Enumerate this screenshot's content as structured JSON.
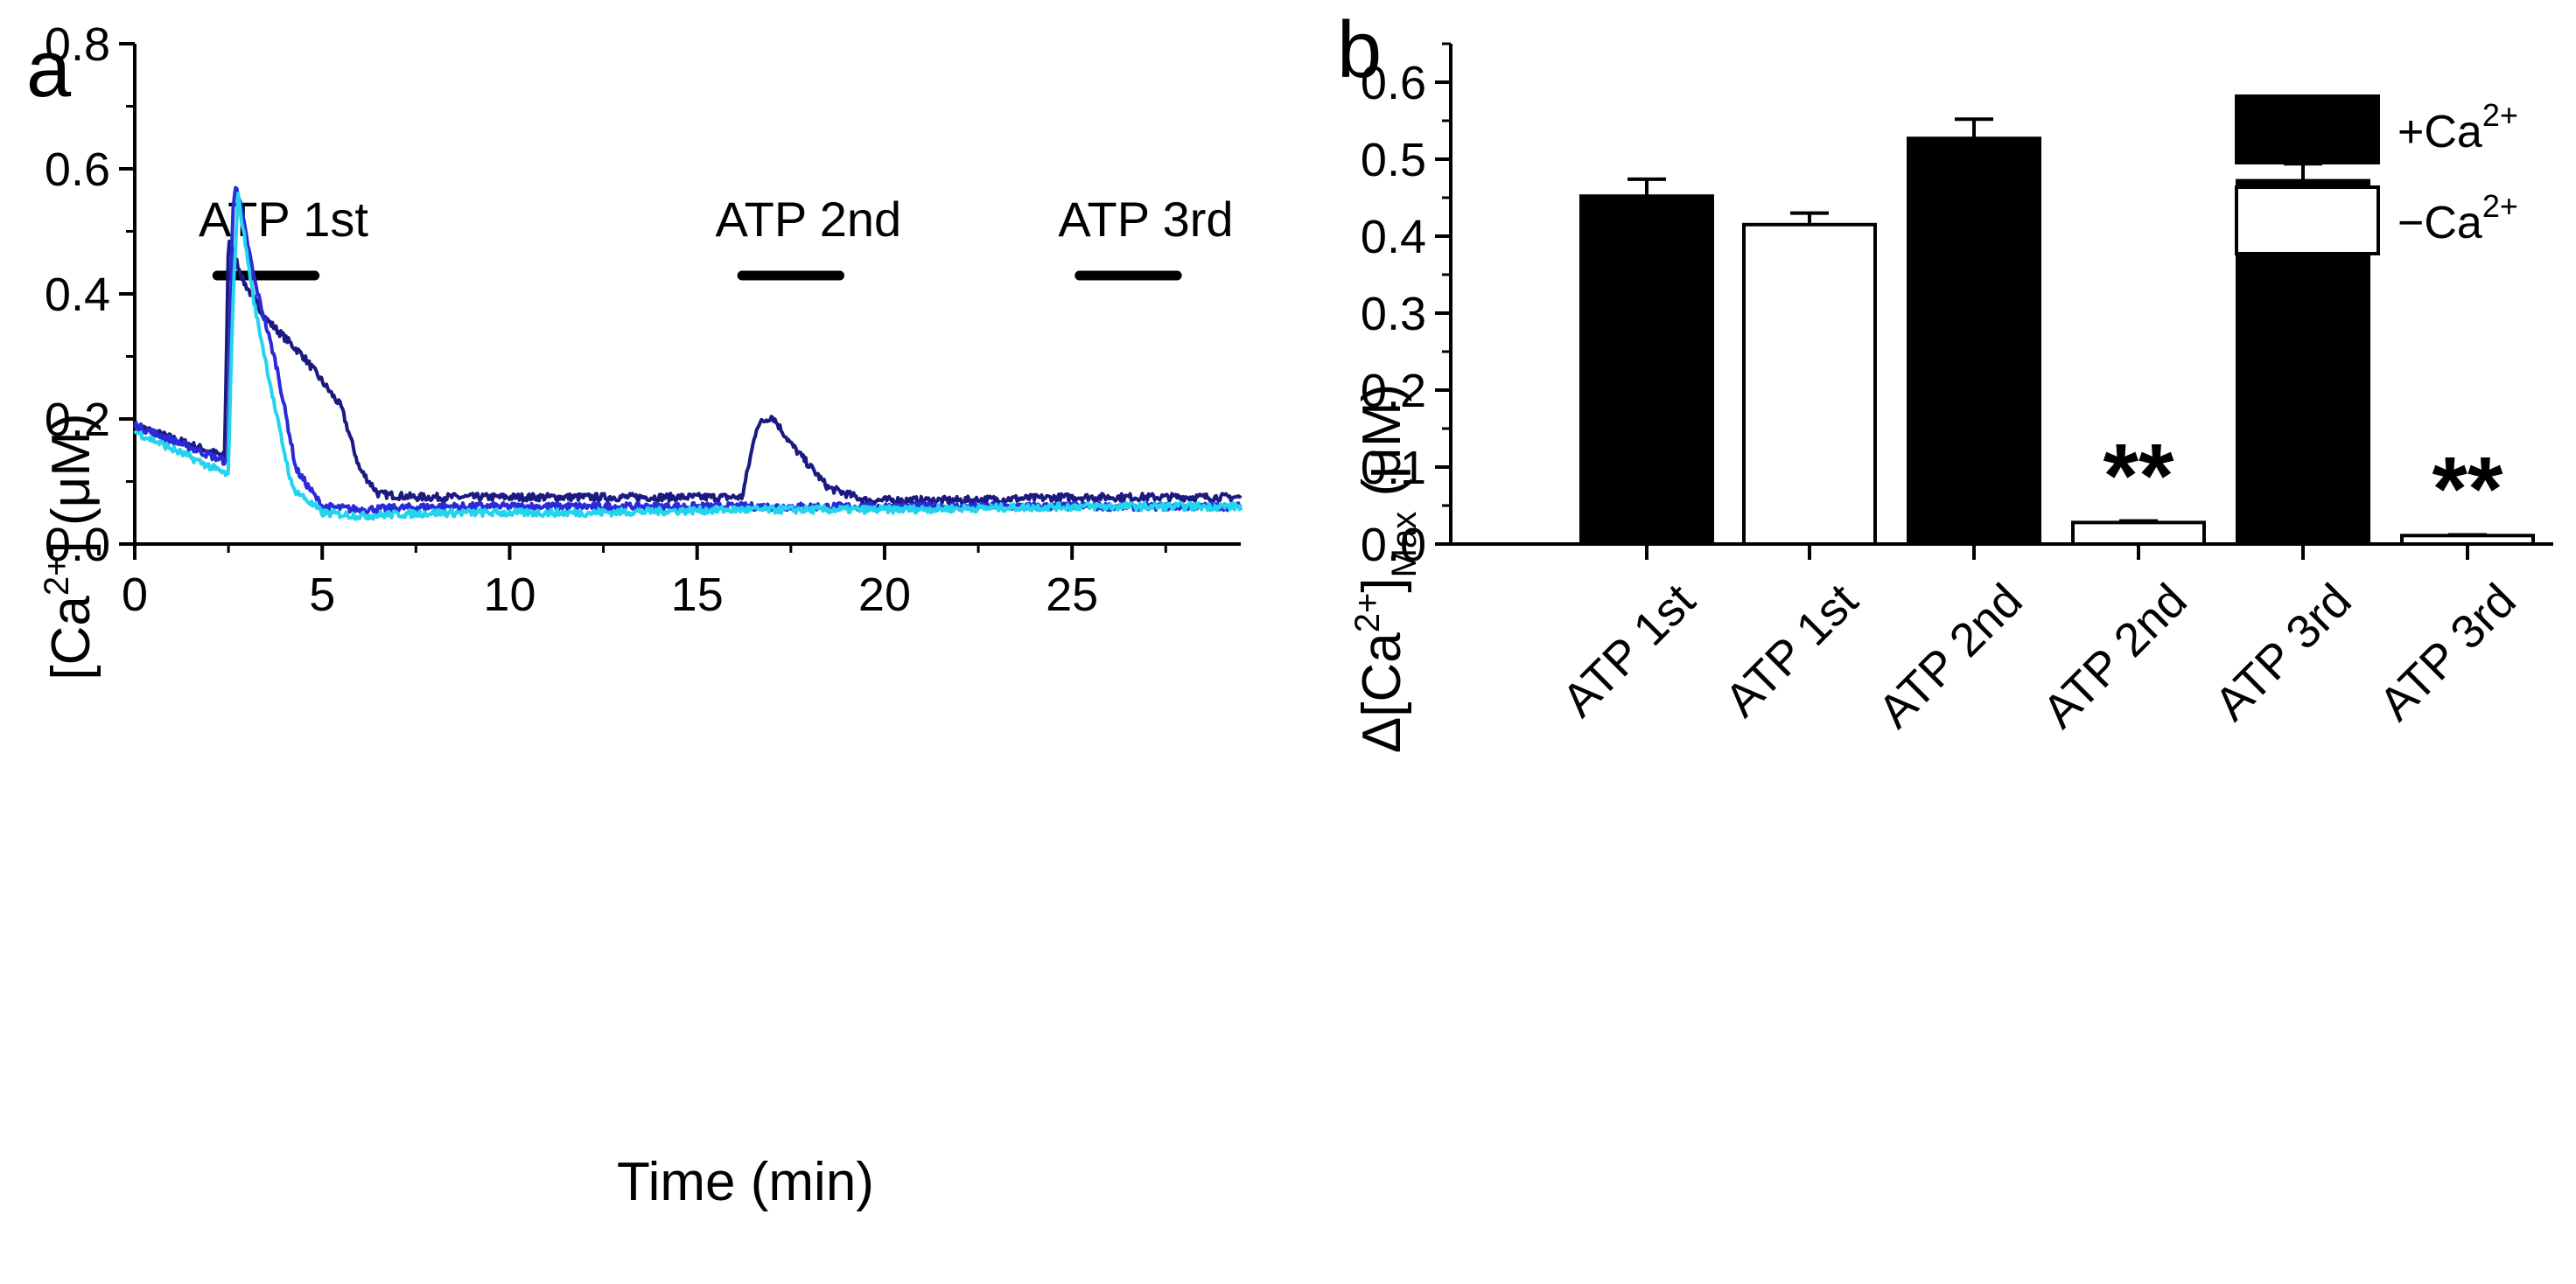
{
  "panel_a": {
    "letter": "a",
    "xlabel": "Time (min)",
    "ylabel_parts": {
      "pre": "[Ca",
      "sup": "2+",
      "post": "] (μM)"
    },
    "xlim": [
      0,
      29.5
    ],
    "ylim": [
      0,
      0.8
    ],
    "x_ticks": [
      0,
      5,
      10,
      15,
      20,
      25
    ],
    "x_tick_labels": [
      "0",
      "5",
      "10",
      "15",
      "20",
      "25"
    ],
    "y_ticks": [
      0,
      0.2,
      0.4,
      0.6,
      0.8
    ],
    "y_tick_labels": [
      "0.0",
      "0.2",
      "0.4",
      "0.6",
      "0.8"
    ],
    "stimuli": [
      {
        "label": "ATP 1st",
        "start": 2.2,
        "end": 4.8
      },
      {
        "label": "ATP 2nd",
        "start": 16.2,
        "end": 18.8
      },
      {
        "label": "ATP 3rd",
        "start": 25.2,
        "end": 27.8
      }
    ],
    "colors": {
      "trace1": "#1a1a80",
      "trace2": "#2a2ad8",
      "trace3": "#22d4ee"
    }
  },
  "panel_b": {
    "letter": "b",
    "ylabel_parts": {
      "pre": "Δ[Ca",
      "sup": "2+",
      "post": "]",
      "sub": "Max",
      "unit": " (μM)"
    },
    "ylim": [
      0,
      0.65
    ],
    "y_ticks": [
      0,
      0.1,
      0.2,
      0.3,
      0.4,
      0.5,
      0.6
    ],
    "y_tick_labels": [
      "0.0",
      "0.1",
      "0.2",
      "0.3",
      "0.4",
      "0.5",
      "0.6"
    ],
    "legend": [
      {
        "label_pre": "+Ca",
        "sup": "2+",
        "fill": "#000000"
      },
      {
        "label_pre": "−Ca",
        "sup": "2+",
        "fill": "#ffffff"
      }
    ],
    "significance_mark": "**"
  },
  "chart_data": [
    {
      "type": "line",
      "xlabel": "Time (min)",
      "ylabel": "[Ca2+] (μM)",
      "xlim": [
        0,
        29.5
      ],
      "ylim": [
        0,
        0.8
      ],
      "grid": false,
      "series": [
        {
          "color": "#1a1a80",
          "x": [
            0,
            2.4,
            2.5,
            2.9,
            3.5,
            4.5,
            5.5,
            6.0,
            6.5,
            7.5,
            10,
            16.2,
            16.6,
            17.0,
            17.5,
            18.5,
            19.5,
            22,
            25,
            29.5
          ],
          "y": [
            0.19,
            0.14,
            0.49,
            0.42,
            0.36,
            0.3,
            0.22,
            0.12,
            0.08,
            0.075,
            0.075,
            0.075,
            0.19,
            0.205,
            0.16,
            0.09,
            0.07,
            0.07,
            0.075,
            0.075
          ]
        },
        {
          "color": "#2a2ad8",
          "x": [
            0,
            2.5,
            2.6,
            2.7,
            3.2,
            3.8,
            4.3,
            5,
            6,
            8,
            12,
            16,
            20,
            25,
            29.5
          ],
          "y": [
            0.19,
            0.13,
            0.52,
            0.58,
            0.42,
            0.28,
            0.12,
            0.06,
            0.055,
            0.06,
            0.06,
            0.06,
            0.06,
            0.06,
            0.06
          ]
        },
        {
          "color": "#22d4ee",
          "x": [
            0,
            2.5,
            2.6,
            2.75,
            3.2,
            3.8,
            4.2,
            5,
            6,
            8,
            12,
            16,
            20,
            25,
            29.5
          ],
          "y": [
            0.18,
            0.11,
            0.36,
            0.56,
            0.38,
            0.2,
            0.09,
            0.05,
            0.045,
            0.05,
            0.05,
            0.055,
            0.055,
            0.06,
            0.06
          ]
        }
      ],
      "annotations": [
        "ATP 1st",
        "ATP 2nd",
        "ATP 3rd"
      ]
    },
    {
      "type": "bar",
      "ylabel": "Δ[Ca2+]Max (μM)",
      "ylim": [
        0,
        0.65
      ],
      "categories": [
        "ATP 1st",
        "ATP 1st",
        "ATP 2nd",
        "ATP 2nd",
        "ATP 3rd",
        "ATP 3rd"
      ],
      "values": [
        0.452,
        0.415,
        0.527,
        0.028,
        0.472,
        0.011
      ],
      "errors": [
        0.022,
        0.015,
        0.025,
        0.002,
        0.022,
        0.001
      ],
      "groups": [
        "+Ca2+",
        "−Ca2+",
        "+Ca2+",
        "−Ca2+",
        "+Ca2+",
        "−Ca2+"
      ],
      "fills": [
        "#000000",
        "#ffffff",
        "#000000",
        "#ffffff",
        "#000000",
        "#ffffff"
      ],
      "significant": [
        false,
        false,
        false,
        true,
        false,
        true
      ],
      "legend": [
        "+Ca2+",
        "−Ca2+"
      ],
      "legend_position": "top-right",
      "grid": false
    }
  ]
}
